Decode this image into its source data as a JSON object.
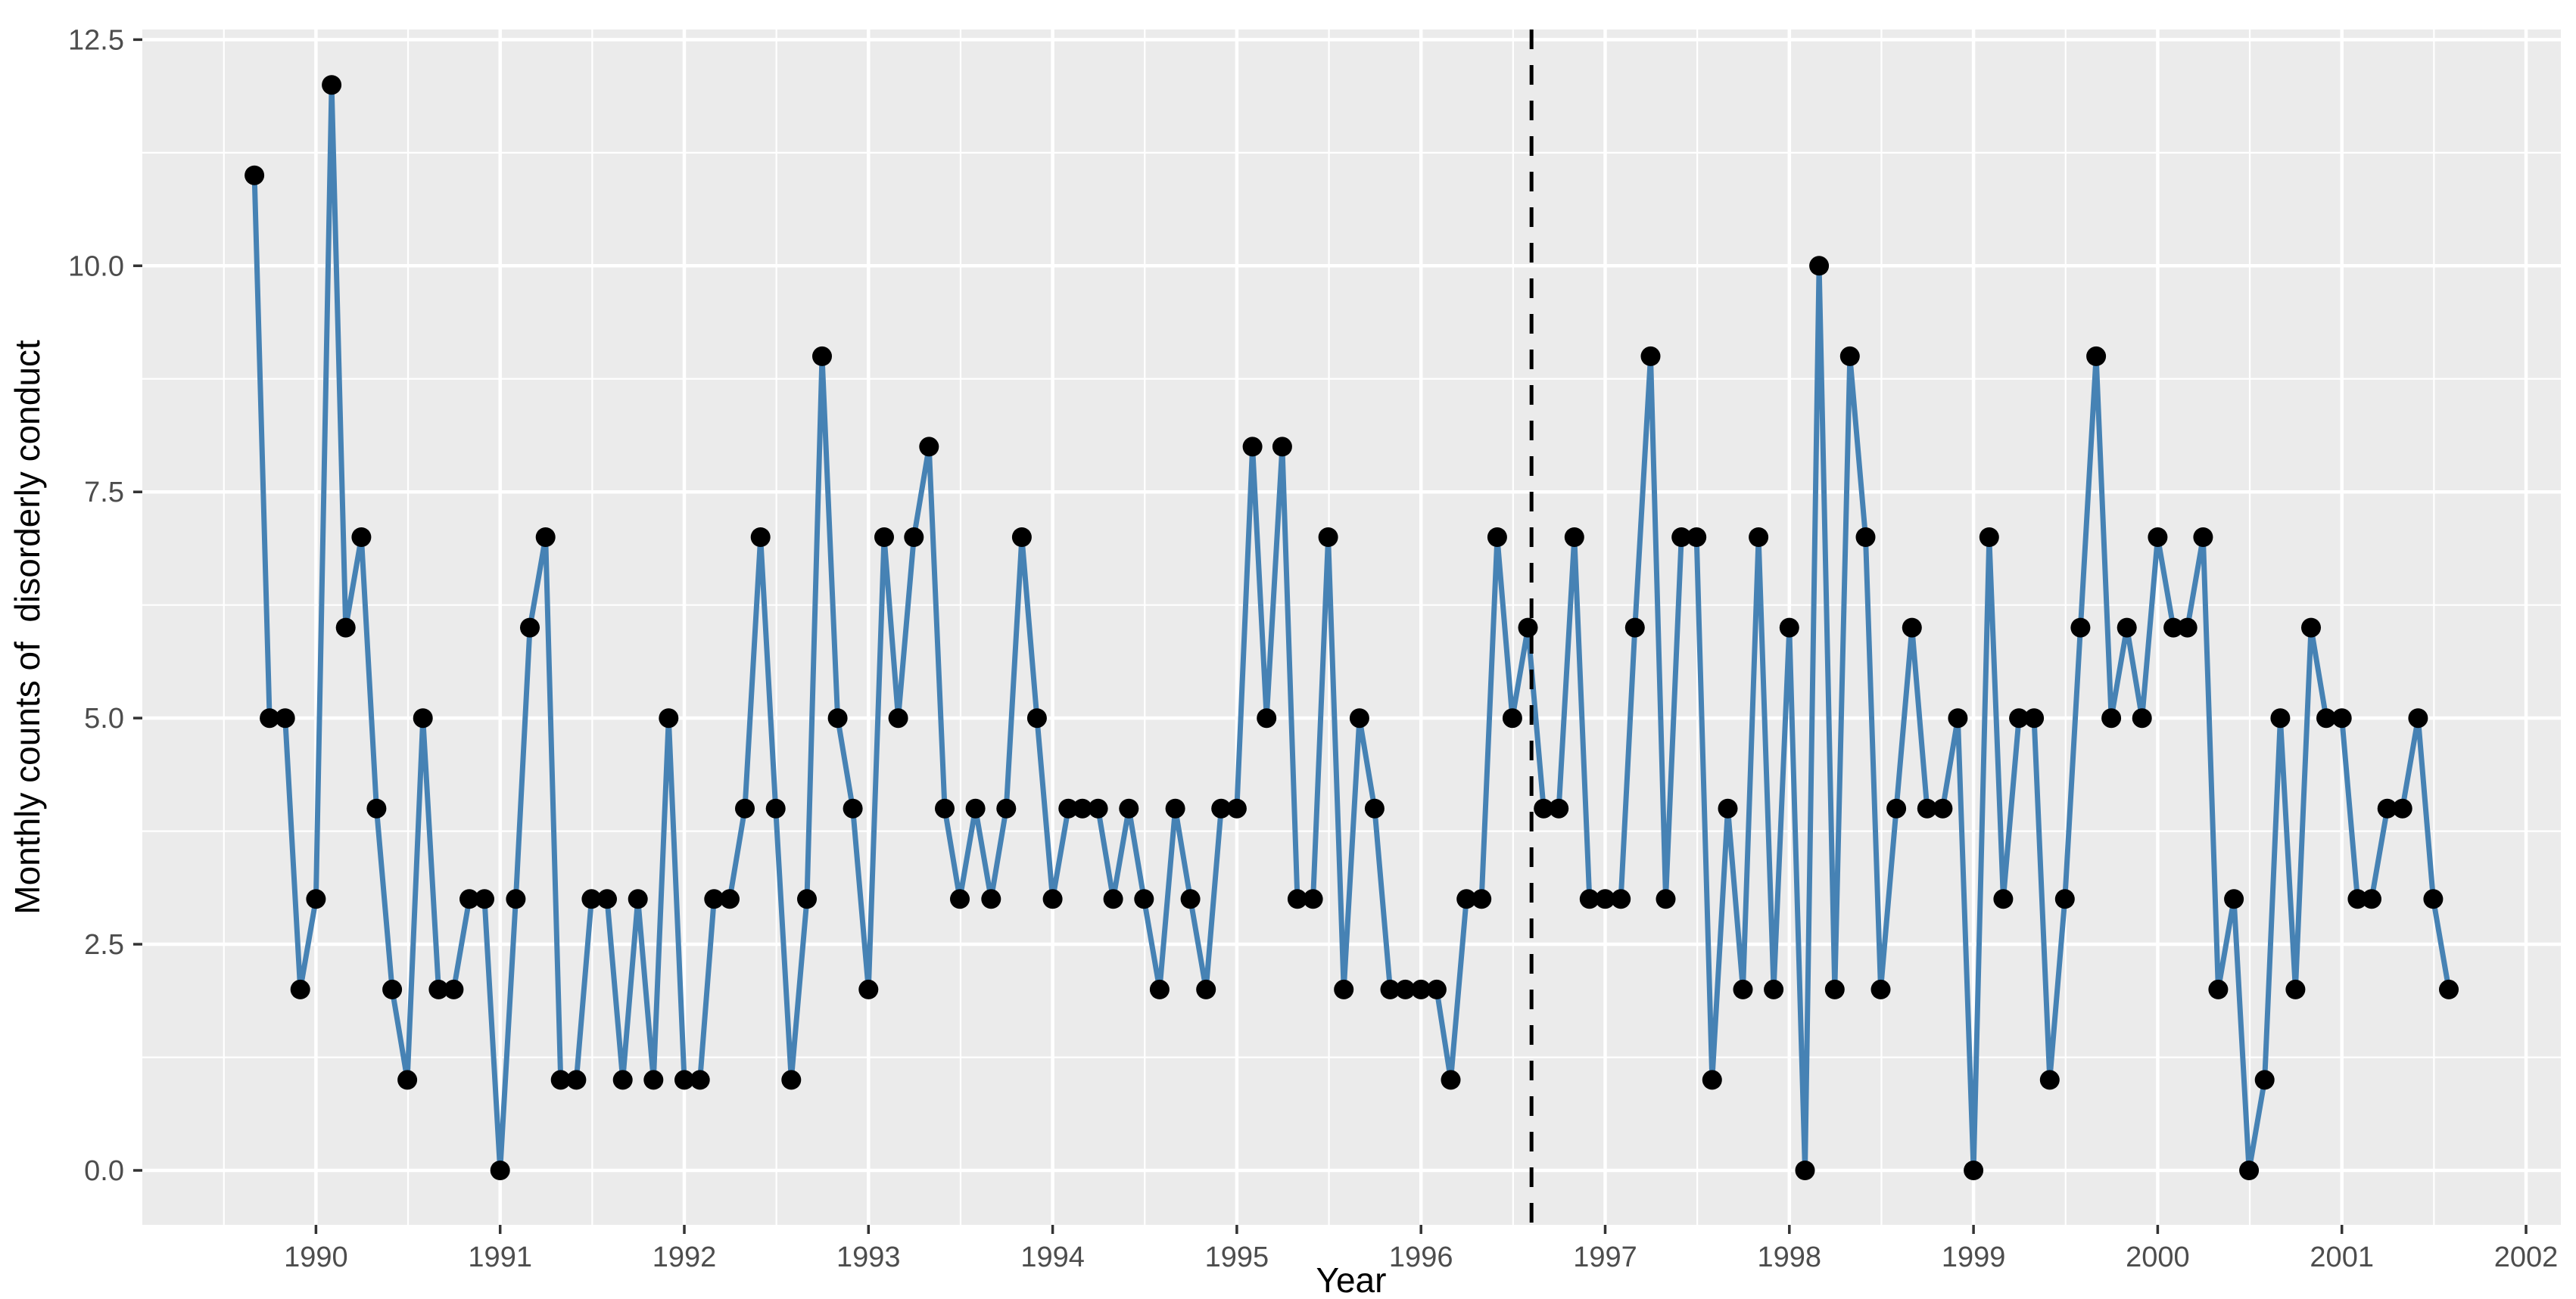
{
  "colors": {
    "panel_bg": "#EBEBEB",
    "grid": "#FFFFFF",
    "line": "#4682B4",
    "point": "#000000",
    "vline": "#000000",
    "tick_label": "#4D4D4D",
    "axis_title": "#000000",
    "tick_mark": "#333333"
  },
  "chart_data": {
    "type": "line",
    "title": "",
    "xlabel": "Year",
    "ylabel": "Monthly counts of  disorderly conduct",
    "x_tick_labels": [
      "1990",
      "1991",
      "1992",
      "1993",
      "1994",
      "1995",
      "1996",
      "1997",
      "1998",
      "1999",
      "2000",
      "2001",
      "2002"
    ],
    "x_tick_values": [
      1990,
      1991,
      1992,
      1993,
      1994,
      1995,
      1996,
      1997,
      1998,
      1999,
      2000,
      2001,
      2002
    ],
    "y_tick_labels": [
      "0.0",
      "2.5",
      "5.0",
      "7.5",
      "10.0",
      "12.5"
    ],
    "y_tick_values": [
      0,
      2.5,
      5,
      7.5,
      10,
      12.5
    ],
    "x_range": [
      1989.06,
      2002.19
    ],
    "y_range": [
      -0.6,
      12.6
    ],
    "grid": "major-and-minor",
    "legend_position": "none",
    "series_name": "monthly_disorderly_conduct_counts",
    "start": {
      "year": 1989,
      "month": 9
    },
    "end": {
      "year": 2001,
      "month": 8
    },
    "values": [
      11,
      5,
      5,
      2,
      3,
      12,
      6,
      7,
      4,
      2,
      1,
      5,
      2,
      2,
      3,
      3,
      0,
      3,
      6,
      7,
      1,
      1,
      3,
      3,
      1,
      3,
      1,
      5,
      1,
      1,
      3,
      3,
      4,
      7,
      4,
      1,
      3,
      9,
      5,
      4,
      2,
      7,
      5,
      7,
      8,
      4,
      3,
      4,
      3,
      4,
      7,
      5,
      3,
      4,
      4,
      4,
      3,
      4,
      3,
      2,
      4,
      3,
      2,
      4,
      4,
      8,
      5,
      8,
      3,
      3,
      7,
      2,
      5,
      4,
      2,
      2,
      2,
      2,
      1,
      3,
      3,
      7,
      5,
      6,
      4,
      4,
      7,
      3,
      3,
      3,
      6,
      9,
      3,
      7,
      7,
      1,
      4,
      2,
      7,
      2,
      6,
      0,
      10,
      2,
      9,
      7,
      2,
      4,
      6,
      4,
      4,
      5,
      0,
      7,
      3,
      5,
      5,
      1,
      3,
      6,
      9,
      5,
      6,
      5,
      7,
      6,
      6,
      7,
      2,
      3,
      0,
      1,
      5,
      2,
      6,
      5,
      5,
      3,
      3,
      4,
      4,
      5,
      3,
      2
    ],
    "vline_x": 1996.6,
    "vline_style": "dashed",
    "marker": "filled-circle"
  }
}
